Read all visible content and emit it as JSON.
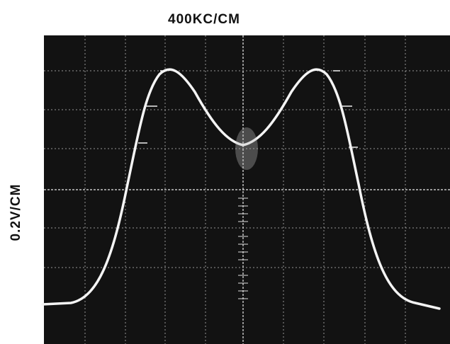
{
  "x_label": "400KC/CM",
  "y_label": "0.2V/CM"
}
